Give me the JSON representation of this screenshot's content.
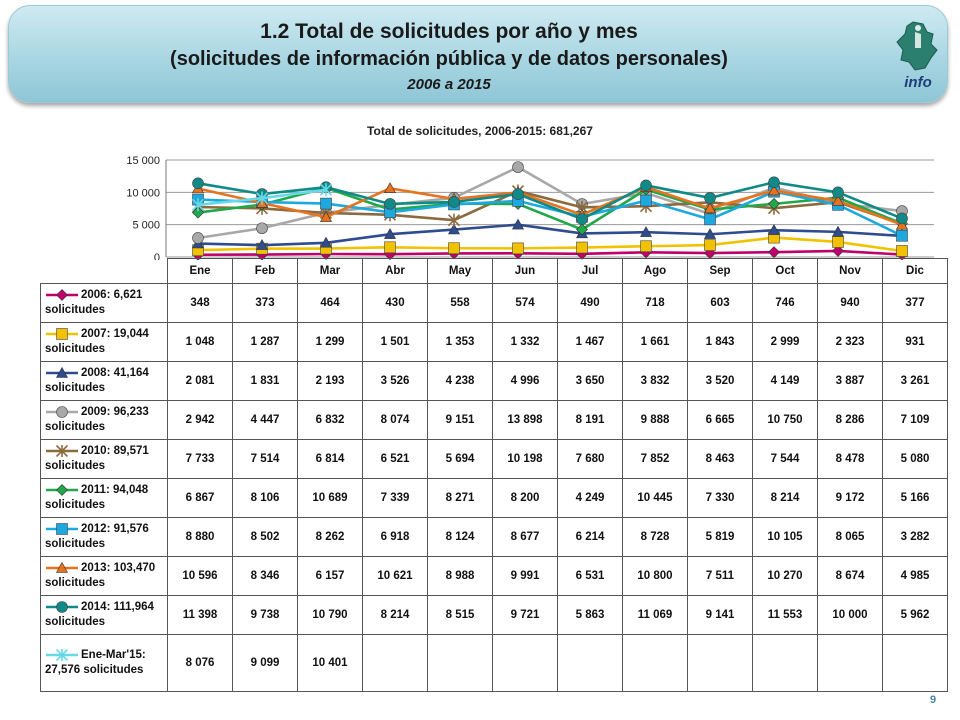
{
  "header": {
    "title": "1.2 Total de solicitudes por año y mes",
    "subtitle": "(solicitudes de información pública y de datos personales)",
    "period": "2006 a 2015",
    "logo_text": "info"
  },
  "page_number": "9",
  "chart_data": {
    "type": "line",
    "title": "Total de solicitudes, 2006-2015: 681,267",
    "categories": [
      "Ene",
      "Feb",
      "Mar",
      "Abr",
      "May",
      "Jun",
      "Jul",
      "Ago",
      "Sep",
      "Oct",
      "Nov",
      "Dic"
    ],
    "ylim": [
      0,
      15000
    ],
    "yticks": [
      0,
      5000,
      10000,
      15000
    ],
    "ytick_labels": [
      "0",
      "5 000",
      "10 000",
      "15 000"
    ],
    "grid": true,
    "series": [
      {
        "name": "2006: 6,621 solicitudes",
        "color": "#c0006a",
        "marker": "diamond",
        "values": [
          348,
          373,
          464,
          430,
          558,
          574,
          490,
          718,
          603,
          746,
          940,
          377
        ],
        "labels": [
          "348",
          "373",
          "464",
          "430",
          "558",
          "574",
          "490",
          "718",
          "603",
          "746",
          "940",
          "377"
        ]
      },
      {
        "name": "2007: 19,044 solicitudes",
        "color": "#f2c200",
        "marker": "square",
        "values": [
          1048,
          1287,
          1299,
          1501,
          1353,
          1332,
          1467,
          1661,
          1843,
          2999,
          2323,
          931
        ],
        "labels": [
          "1 048",
          "1 287",
          "1 299",
          "1 501",
          "1 353",
          "1 332",
          "1 467",
          "1 661",
          "1 843",
          "2 999",
          "2 323",
          "931"
        ]
      },
      {
        "name": "2008: 41,164 solicitudes",
        "color": "#2e4c8f",
        "marker": "triangle",
        "values": [
          2081,
          1831,
          2193,
          3526,
          4238,
          4996,
          3650,
          3832,
          3520,
          4149,
          3887,
          3261
        ],
        "labels": [
          "2 081",
          "1 831",
          "2 193",
          "3 526",
          "4 238",
          "4 996",
          "3 650",
          "3 832",
          "3 520",
          "4 149",
          "3 887",
          "3 261"
        ]
      },
      {
        "name": "2009: 96,233 solicitudes",
        "color": "#a8a8a8",
        "marker": "circle",
        "values": [
          2942,
          4447,
          6832,
          8074,
          9151,
          13898,
          8191,
          9888,
          6665,
          10750,
          8286,
          7109
        ],
        "labels": [
          "2 942",
          "4 447",
          "6 832",
          "8 074",
          "9 151",
          "13 898",
          "8 191",
          "9 888",
          "6 665",
          "10 750",
          "8 286",
          "7 109"
        ]
      },
      {
        "name": "2010: 89,571 solicitudes",
        "color": "#8b6a3e",
        "marker": "star",
        "values": [
          7733,
          7514,
          6814,
          6521,
          5694,
          10198,
          7680,
          7852,
          8463,
          7544,
          8478,
          5080
        ],
        "labels": [
          "7 733",
          "7 514",
          "6 814",
          "6 521",
          "5 694",
          "10 198",
          "7 680",
          "7 852",
          "8 463",
          "7 544",
          "8 478",
          "5 080"
        ]
      },
      {
        "name": "2011: 94,048 solicitudes",
        "color": "#20a84a",
        "marker": "diamond",
        "values": [
          6867,
          8106,
          10689,
          7339,
          8271,
          8200,
          4249,
          10445,
          7330,
          8214,
          9172,
          5166
        ],
        "labels": [
          "6 867",
          "8 106",
          "10 689",
          "7 339",
          "8 271",
          "8 200",
          "4 249",
          "10 445",
          "7 330",
          "8 214",
          "9 172",
          "5 166"
        ]
      },
      {
        "name": "2012: 91,576 solicitudes",
        "color": "#1ea8e0",
        "marker": "square",
        "values": [
          8880,
          8502,
          8262,
          6918,
          8124,
          8677,
          6214,
          8728,
          5819,
          10105,
          8065,
          3282
        ],
        "labels": [
          "8 880",
          "8 502",
          "8 262",
          "6 918",
          "8 124",
          "8 677",
          "6 214",
          "8 728",
          "5 819",
          "10 105",
          "8 065",
          "3 282"
        ]
      },
      {
        "name": "2013: 103,470 solicitudes",
        "color": "#e8731e",
        "marker": "triangle",
        "values": [
          10596,
          8346,
          6157,
          10621,
          8988,
          9991,
          6531,
          10800,
          7511,
          10270,
          8674,
          4985
        ],
        "labels": [
          "10 596",
          "8 346",
          "6 157",
          "10 621",
          "8 988",
          "9 991",
          "6 531",
          "10 800",
          "7 511",
          "10 270",
          "8 674",
          "4 985"
        ]
      },
      {
        "name": "2014: 111,964 solicitudes",
        "color": "#108a86",
        "marker": "circle",
        "values": [
          11398,
          9738,
          10790,
          8214,
          8515,
          9721,
          5863,
          11069,
          9141,
          11553,
          10000,
          5962
        ],
        "labels": [
          "11 398",
          "9 738",
          "10 790",
          "8 214",
          "8 515",
          "9 721",
          "5 863",
          "11 069",
          "9 141",
          "11 553",
          "10 000",
          "5 962"
        ]
      },
      {
        "name": "Ene-Mar'15: 27,576 solicitudes",
        "color": "#66d8e8",
        "marker": "star",
        "values": [
          8076,
          9099,
          10401,
          null,
          null,
          null,
          null,
          null,
          null,
          null,
          null,
          null
        ],
        "labels": [
          "8 076",
          "9 099",
          "10 401",
          "",
          "",
          "",
          "",
          "",
          "",
          "",
          "",
          ""
        ]
      }
    ]
  }
}
